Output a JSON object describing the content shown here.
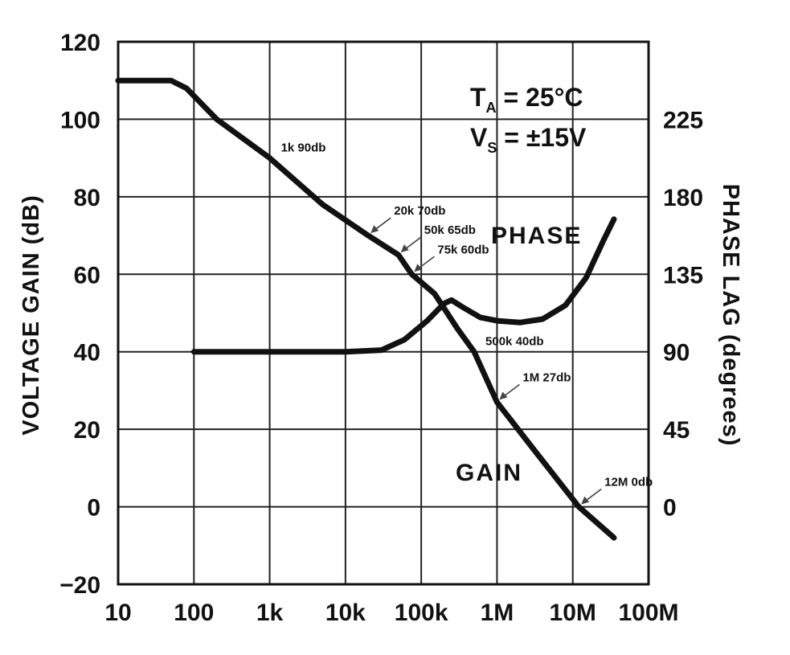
{
  "chart_data": {
    "type": "line",
    "x_scale": "log",
    "xlim": [
      10,
      100000000
    ],
    "x_tick_labels": [
      "10",
      "100",
      "1k",
      "10k",
      "100k",
      "1M",
      "10M",
      "100M"
    ],
    "ylim_left": [
      -20,
      120
    ],
    "y_left_ticks": [
      -20,
      0,
      20,
      40,
      60,
      80,
      100,
      120
    ],
    "y_left_tick_labels": [
      "−20",
      "0",
      "20",
      "40",
      "60",
      "80",
      "100",
      "120"
    ],
    "ylabel_left": "VOLTAGE GAIN (dB)",
    "y_right_ticks": [
      0,
      45,
      90,
      135,
      180,
      225
    ],
    "y_right_tick_labels": [
      "0",
      "45",
      "90",
      "135",
      "180",
      "225"
    ],
    "ylabel_right": "PHASE LAG (degrees)",
    "grid": true,
    "conditions": {
      "ta_main": "T",
      "ta_sub": "A",
      "ta_rest": " = 25°C",
      "vs_main": "V",
      "vs_sub": "S",
      "vs_rest": " = ±15V"
    },
    "series": [
      {
        "name": "GAIN",
        "axis": "left",
        "x": [
          10,
          50,
          80,
          200,
          1000,
          5000,
          20000,
          50000,
          75000,
          150000,
          300000,
          500000,
          1000000,
          3000000,
          12000000,
          35000000
        ],
        "y": [
          110,
          110,
          108,
          100,
          90,
          78,
          70,
          65,
          60,
          55,
          46,
          40,
          27,
          15,
          0,
          -8
        ]
      },
      {
        "name": "PHASE",
        "axis": "right",
        "x": [
          100,
          1000,
          10000,
          30000,
          60000,
          120000,
          200000,
          250000,
          350000,
          600000,
          1000000,
          2000000,
          4000000,
          8000000,
          15000000,
          25000000,
          35000000
        ],
        "y": [
          90,
          90,
          90,
          91,
          97,
          108,
          118,
          120,
          116,
          110,
          108,
          107,
          109,
          117,
          133,
          154,
          167
        ]
      }
    ],
    "annotations": [
      {
        "text": "1k 90db",
        "x": 1000,
        "y": 90,
        "arrow": false
      },
      {
        "text": "20k 70db",
        "x": 20000,
        "y": 70,
        "arrow": true
      },
      {
        "text": "50k 65db",
        "x": 50000,
        "y": 65,
        "arrow": true
      },
      {
        "text": "75k 60db",
        "x": 75000,
        "y": 60,
        "arrow": true
      },
      {
        "text": "500k 40db",
        "x": 500000,
        "y": 40,
        "arrow": false
      },
      {
        "text": "1M 27db",
        "x": 1000000,
        "y": 27,
        "arrow": true
      },
      {
        "text": "12M  0db",
        "x": 12000000,
        "y": 0,
        "arrow": true
      }
    ]
  }
}
